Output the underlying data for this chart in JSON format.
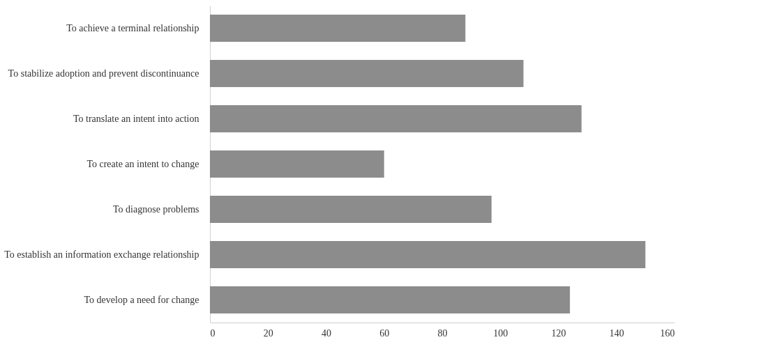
{
  "chart_data": {
    "type": "bar",
    "orientation": "horizontal",
    "categories": [
      "To achieve a terminal relationship",
      "To stabilize adoption and prevent discontinuance",
      "To translate an intent into action",
      "To create an intent to change",
      "To diagnose problems",
      "To establish an information exchange relationship",
      "To develop a need for change"
    ],
    "values": [
      88,
      108,
      128,
      60,
      97,
      150,
      124
    ],
    "color": "#8c8c8c",
    "xlim": [
      0,
      160
    ],
    "xticks": [
      0,
      20,
      40,
      60,
      80,
      100,
      120,
      140,
      160
    ],
    "grid": false
  }
}
